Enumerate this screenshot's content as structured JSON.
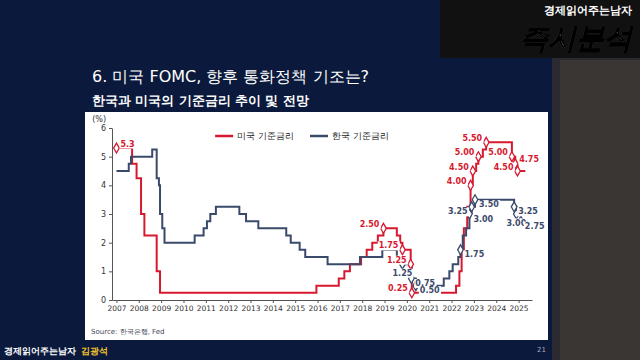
{
  "header": {
    "channel": "경제읽어주는남자",
    "show": "즉시분석",
    "heading": "6. 미국 FOMC, 향후 통화정책 기조는?",
    "footer_channel": "경제읽어주는남자",
    "footer_name": "김광석",
    "page": 21
  },
  "chart_data": {
    "type": "line",
    "title": "한국과 미국의 기준금리 추이 및 전망",
    "y_label": "(%)",
    "source": "Source: 한국은행, Fed",
    "xlim": [
      2006.8,
      2025.6
    ],
    "xticks": [
      2007,
      2008,
      2009,
      2010,
      2011,
      2012,
      2013,
      2014,
      2015,
      2016,
      2017,
      2018,
      2019,
      2020,
      2021,
      2022,
      2023,
      2024,
      2025
    ],
    "ylim": [
      0,
      6
    ],
    "yticks": [
      0,
      1,
      2,
      3,
      4,
      5,
      6
    ],
    "grid": false,
    "legend": "top",
    "data_labels": true,
    "series": [
      {
        "name": "미국 기준금리",
        "color": "#d7192f",
        "line_style": "step",
        "marker": "diamond",
        "x": [
          2007.0,
          2007.7,
          2007.9,
          2008.1,
          2008.25,
          2008.8,
          2008.95,
          2015.95,
          2016.95,
          2017.2,
          2017.45,
          2017.95,
          2018.2,
          2018.45,
          2018.7,
          2018.95,
          2019.55,
          2019.7,
          2019.8,
          2020.17,
          2020.22,
          2022.2,
          2022.35,
          2022.45,
          2022.55,
          2022.7,
          2022.85,
          2022.95,
          2023.1,
          2023.2,
          2023.4,
          2023.55,
          2024.7,
          2024.85,
          2024.95,
          2025.3
        ],
        "values": [
          5.3,
          4.75,
          4.25,
          3.0,
          2.25,
          1.0,
          0.25,
          0.5,
          0.75,
          1.0,
          1.25,
          1.5,
          1.75,
          2.0,
          2.25,
          2.5,
          2.25,
          2.0,
          1.75,
          1.25,
          0.25,
          0.5,
          1.0,
          1.75,
          2.5,
          3.25,
          4.0,
          4.5,
          4.75,
          5.0,
          5.25,
          5.5,
          5.0,
          4.75,
          4.5,
          4.5
        ],
        "value_labels": [
          "5.3",
          null,
          null,
          null,
          null,
          null,
          null,
          null,
          null,
          null,
          null,
          null,
          null,
          null,
          null,
          "2.50",
          null,
          null,
          "1.75",
          "1.25",
          "0.25",
          null,
          null,
          null,
          null,
          null,
          "4.00",
          "4.50",
          null,
          "5.00",
          null,
          "5.50",
          "5.00",
          "4.75",
          "4.50",
          null
        ]
      },
      {
        "name": "한국 기준금리",
        "color": "#3b4a6b",
        "line_style": "step",
        "marker": "diamond",
        "x": [
          2007.0,
          2007.55,
          2007.65,
          2008.6,
          2008.8,
          2008.9,
          2008.95,
          2009.05,
          2009.15,
          2010.5,
          2010.9,
          2011.05,
          2011.2,
          2011.45,
          2012.5,
          2012.8,
          2013.35,
          2014.6,
          2014.8,
          2015.2,
          2015.45,
          2016.45,
          2017.9,
          2018.9,
          2019.55,
          2019.8,
          2020.2,
          2020.4,
          2021.65,
          2021.9,
          2022.05,
          2022.3,
          2022.4,
          2022.5,
          2022.65,
          2022.8,
          2022.9,
          2023.05,
          2024.8,
          2024.9,
          2025.1,
          2025.4
        ],
        "values": [
          4.5,
          4.75,
          5.0,
          5.25,
          4.25,
          4.0,
          3.0,
          2.5,
          2.0,
          2.25,
          2.5,
          2.75,
          3.0,
          3.25,
          3.0,
          2.75,
          2.5,
          2.25,
          2.0,
          1.75,
          1.5,
          1.25,
          1.5,
          1.75,
          1.5,
          1.25,
          0.75,
          0.5,
          0.75,
          1.0,
          1.25,
          1.5,
          1.75,
          2.25,
          2.5,
          3.0,
          3.25,
          3.5,
          3.25,
          3.0,
          2.75,
          2.75
        ],
        "value_labels": [
          null,
          null,
          null,
          null,
          null,
          null,
          null,
          null,
          null,
          null,
          null,
          null,
          null,
          null,
          null,
          null,
          null,
          null,
          null,
          null,
          null,
          null,
          null,
          null,
          null,
          "1.25",
          "0.75",
          "0.50",
          null,
          null,
          null,
          null,
          "1.75",
          null,
          null,
          "3.00",
          "3.25",
          "3.50",
          "3.25",
          "3.00",
          "2.75",
          null
        ]
      }
    ]
  }
}
